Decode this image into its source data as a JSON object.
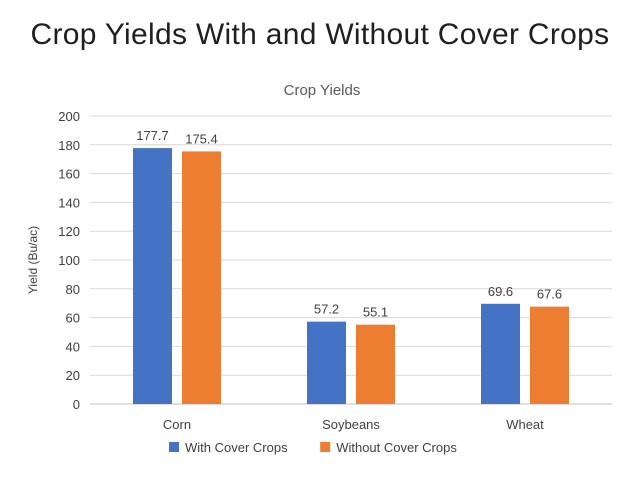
{
  "slide": {
    "title": "Crop Yields With and Without Cover Crops"
  },
  "chart_data": {
    "type": "bar",
    "title": "Crop Yields",
    "xlabel": "",
    "ylabel": "Yield (Bu/ac)",
    "categories": [
      "Corn",
      "Soybeans",
      "Wheat"
    ],
    "series": [
      {
        "name": "With Cover Crops",
        "values": [
          177.7,
          57.2,
          69.6
        ],
        "color": "#4472C4"
      },
      {
        "name": "Without Cover Crops",
        "values": [
          175.4,
          55.1,
          67.6
        ],
        "color": "#ED7D31"
      }
    ],
    "ylim": [
      0,
      200
    ],
    "yticks": [
      0,
      20,
      40,
      60,
      80,
      100,
      120,
      140,
      160,
      180,
      200
    ],
    "grid": true,
    "data_labels": true,
    "legend_position": "bottom"
  }
}
